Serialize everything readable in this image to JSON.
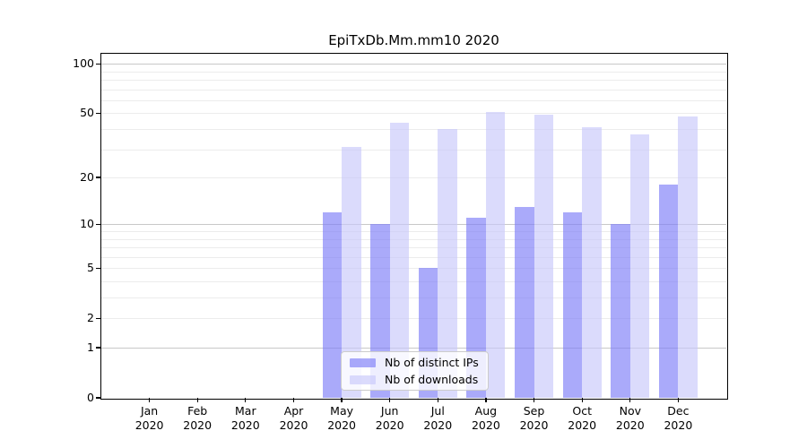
{
  "chart_data": {
    "type": "bar",
    "title": "EpiTxDb.Mm.mm10 2020",
    "year_label": "2020",
    "categories": [
      "Jan",
      "Feb",
      "Mar",
      "Apr",
      "May",
      "Jun",
      "Jul",
      "Aug",
      "Sep",
      "Oct",
      "Nov",
      "Dec"
    ],
    "series": [
      {
        "name": "Nb of distinct IPs",
        "color": "rgba(124,124,247,0.65)",
        "values": [
          0,
          0,
          0,
          0,
          12,
          10,
          5,
          11,
          13,
          12,
          10,
          18
        ]
      },
      {
        "name": "Nb of downloads",
        "color": "rgba(199,199,251,0.65)",
        "values": [
          0,
          0,
          0,
          0,
          31,
          44,
          40,
          51,
          49,
          41,
          37,
          48
        ]
      }
    ],
    "yscale": "log1p",
    "ylim": [
      0,
      115
    ],
    "yticks": [
      100,
      50,
      20,
      10,
      5,
      2,
      1,
      0
    ],
    "major_gridlines": [
      1,
      10,
      100
    ],
    "minor_gridlines": [
      2,
      3,
      4,
      5,
      6,
      7,
      8,
      9,
      20,
      30,
      40,
      50,
      60,
      70,
      80,
      90
    ],
    "grid": true,
    "legend_position": "lower center",
    "colors": {
      "major_grid": "#c8c8c8",
      "minor_grid": "#ececec",
      "axis": "#000000",
      "background": "#ffffff"
    }
  }
}
